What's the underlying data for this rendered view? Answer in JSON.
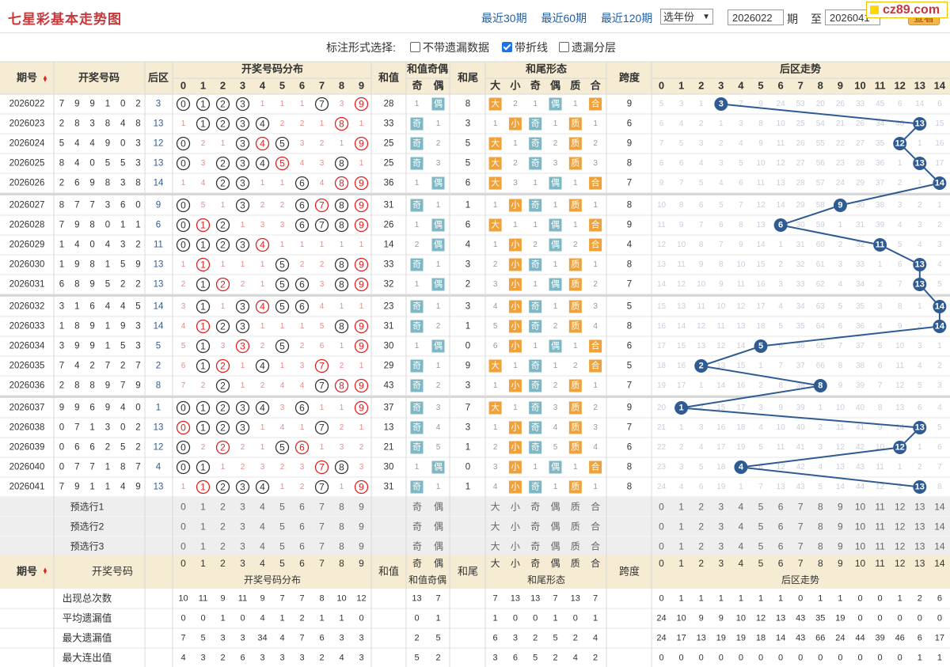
{
  "header": {
    "title": "七星彩基本走势图",
    "links": [
      "最近30期",
      "最近60期",
      "最近120期"
    ],
    "year_select": "选年份",
    "from_period": "2026022",
    "label_period": "期",
    "label_to": "至",
    "to_period": "2026041",
    "query_button": "查看",
    "logo_text": "cz89.com"
  },
  "options": {
    "title": "标注形式选择:",
    "items": [
      {
        "label": "不带遗漏数据",
        "checked": false
      },
      {
        "label": "带折线",
        "checked": true
      },
      {
        "label": "遗漏分层",
        "checked": false
      }
    ]
  },
  "table_headers": {
    "issue": "期号",
    "draw": "开奖号码",
    "back": "后区",
    "dist": "开奖号码分布",
    "sum": "和值",
    "sum_oe": "和值奇偶",
    "odd": "奇",
    "even": "偶",
    "tail": "和尾",
    "tail_form": "和尾形态",
    "forms": [
      "大",
      "小",
      "奇",
      "偶",
      "质",
      "合"
    ],
    "span": "跨度",
    "back_trend": "后区走势"
  },
  "rows": [
    {
      "issue": "2026022",
      "draw": [
        "7",
        "9",
        "9",
        "1",
        "0",
        "2"
      ],
      "back": 3,
      "sum": 28,
      "tail": 8,
      "span": 9,
      "dist": [
        "0",
        "1",
        "2",
        "3",
        "1",
        "1",
        "1",
        "7",
        "3",
        "9"
      ],
      "oe": [
        "1",
        "偶"
      ],
      "tf": [
        "大",
        "2",
        "1",
        "偶",
        "1",
        "合"
      ],
      "trend": [
        "5",
        "3",
        "1",
        "3",
        "7",
        "9",
        "24",
        "53",
        "20",
        "26",
        "33",
        "45",
        "6",
        "14",
        "6"
      ]
    },
    {
      "issue": "2026023",
      "draw": [
        "2",
        "8",
        "3",
        "8",
        "4",
        "8"
      ],
      "back": 13,
      "sum": 33,
      "tail": 3,
      "span": 6,
      "dist": [
        "1",
        "1",
        "2",
        "3",
        "4",
        "2",
        "2",
        "1",
        "8",
        "1"
      ],
      "oe": [
        "奇",
        "1"
      ],
      "tf": [
        "1",
        "小",
        "奇",
        "1",
        "质",
        "1"
      ],
      "trend": [
        "6",
        "4",
        "2",
        "1",
        "3",
        "8",
        "10",
        "25",
        "54",
        "21",
        "26",
        "34",
        "46",
        "13",
        "15"
      ]
    },
    {
      "issue": "2026024",
      "draw": [
        "5",
        "4",
        "4",
        "9",
        "0",
        "3"
      ],
      "back": 12,
      "sum": 25,
      "tail": 5,
      "span": 9,
      "dist": [
        "0",
        "2",
        "1",
        "3",
        "4",
        "5",
        "3",
        "2",
        "1",
        "9"
      ],
      "oe": [
        "奇",
        "2"
      ],
      "tf": [
        "大",
        "1",
        "奇",
        "2",
        "质",
        "2"
      ],
      "trend": [
        "7",
        "5",
        "3",
        "2",
        "4",
        "9",
        "11",
        "26",
        "55",
        "22",
        "27",
        "35",
        "12",
        "1",
        "16"
      ]
    },
    {
      "issue": "2026025",
      "draw": [
        "8",
        "4",
        "0",
        "5",
        "5",
        "3"
      ],
      "back": 13,
      "sum": 25,
      "tail": 5,
      "span": 8,
      "dist": [
        "0",
        "3",
        "2",
        "3",
        "4",
        "5",
        "4",
        "3",
        "8",
        "1"
      ],
      "oe": [
        "奇",
        "3"
      ],
      "tf": [
        "大",
        "2",
        "奇",
        "3",
        "质",
        "3"
      ],
      "trend": [
        "8",
        "6",
        "4",
        "3",
        "5",
        "10",
        "12",
        "27",
        "56",
        "23",
        "28",
        "36",
        "1",
        "13",
        "17"
      ]
    },
    {
      "issue": "2026026",
      "draw": [
        "2",
        "6",
        "9",
        "8",
        "3",
        "8"
      ],
      "back": 14,
      "sum": 36,
      "tail": 6,
      "span": 7,
      "dist": [
        "1",
        "4",
        "2",
        "3",
        "1",
        "1",
        "6",
        "4",
        "8",
        "9"
      ],
      "oe": [
        "1",
        "偶"
      ],
      "tf": [
        "大",
        "3",
        "1",
        "偶",
        "1",
        "合"
      ],
      "trend": [
        "9",
        "7",
        "5",
        "4",
        "6",
        "11",
        "13",
        "28",
        "57",
        "24",
        "29",
        "37",
        "2",
        "1",
        "14"
      ]
    },
    {
      "issue": "2026027",
      "draw": [
        "8",
        "7",
        "7",
        "3",
        "6",
        "0"
      ],
      "back": 9,
      "sum": 31,
      "tail": 1,
      "span": 8,
      "dist": [
        "0",
        "5",
        "1",
        "3",
        "2",
        "2",
        "6",
        "7",
        "8",
        "9"
      ],
      "oe": [
        "奇",
        "1"
      ],
      "tf": [
        "1",
        "小",
        "奇",
        "1",
        "质",
        "1"
      ],
      "trend": [
        "10",
        "8",
        "6",
        "5",
        "7",
        "12",
        "14",
        "29",
        "58",
        "9",
        "30",
        "38",
        "3",
        "2",
        "1"
      ]
    },
    {
      "issue": "2026028",
      "draw": [
        "7",
        "9",
        "8",
        "0",
        "1",
        "1"
      ],
      "back": 6,
      "sum": 26,
      "tail": 6,
      "span": 9,
      "dist": [
        "0",
        "1",
        "2",
        "1",
        "3",
        "3",
        "6",
        "7",
        "8",
        "9"
      ],
      "oe": [
        "1",
        "偶"
      ],
      "tf": [
        "大",
        "1",
        "1",
        "偶",
        "1",
        "合"
      ],
      "trend": [
        "11",
        "9",
        "7",
        "6",
        "8",
        "13",
        "6",
        "30",
        "59",
        "1",
        "31",
        "39",
        "4",
        "3",
        "2"
      ]
    },
    {
      "issue": "2026029",
      "draw": [
        "1",
        "4",
        "0",
        "4",
        "3",
        "2"
      ],
      "back": 11,
      "sum": 14,
      "tail": 4,
      "span": 4,
      "dist": [
        "0",
        "1",
        "2",
        "3",
        "4",
        "1",
        "1",
        "1",
        "1",
        "1"
      ],
      "oe": [
        "2",
        "偶"
      ],
      "tf": [
        "1",
        "小",
        "2",
        "偶",
        "2",
        "合"
      ],
      "trend": [
        "12",
        "10",
        "8",
        "7",
        "9",
        "14",
        "1",
        "31",
        "60",
        "2",
        "32",
        "11",
        "5",
        "4",
        "3"
      ]
    },
    {
      "issue": "2026030",
      "draw": [
        "1",
        "9",
        "8",
        "1",
        "5",
        "9"
      ],
      "back": 13,
      "sum": 33,
      "tail": 3,
      "span": 8,
      "dist": [
        "1",
        "1",
        "1",
        "1",
        "1",
        "5",
        "2",
        "2",
        "8",
        "9"
      ],
      "oe": [
        "奇",
        "1"
      ],
      "tf": [
        "2",
        "小",
        "奇",
        "1",
        "质",
        "1"
      ],
      "trend": [
        "13",
        "11",
        "9",
        "8",
        "10",
        "15",
        "2",
        "32",
        "61",
        "3",
        "33",
        "1",
        "6",
        "13",
        "4"
      ]
    },
    {
      "issue": "2026031",
      "draw": [
        "6",
        "8",
        "9",
        "5",
        "2",
        "2"
      ],
      "back": 13,
      "sum": 32,
      "tail": 2,
      "span": 7,
      "dist": [
        "2",
        "1",
        "2",
        "2",
        "1",
        "5",
        "6",
        "3",
        "8",
        "9"
      ],
      "oe": [
        "1",
        "偶"
      ],
      "tf": [
        "3",
        "小",
        "1",
        "偶",
        "质",
        "2"
      ],
      "trend": [
        "14",
        "12",
        "10",
        "9",
        "11",
        "16",
        "3",
        "33",
        "62",
        "4",
        "34",
        "2",
        "7",
        "13",
        "5"
      ]
    },
    {
      "issue": "2026032",
      "draw": [
        "3",
        "1",
        "6",
        "4",
        "4",
        "5"
      ],
      "back": 14,
      "sum": 23,
      "tail": 3,
      "span": 5,
      "dist": [
        "3",
        "1",
        "1",
        "3",
        "4",
        "5",
        "6",
        "4",
        "1",
        "1"
      ],
      "oe": [
        "奇",
        "1"
      ],
      "tf": [
        "4",
        "小",
        "奇",
        "1",
        "质",
        "3"
      ],
      "trend": [
        "15",
        "13",
        "11",
        "10",
        "12",
        "17",
        "4",
        "34",
        "63",
        "5",
        "35",
        "3",
        "8",
        "1",
        "14"
      ]
    },
    {
      "issue": "2026033",
      "draw": [
        "1",
        "8",
        "9",
        "1",
        "9",
        "3"
      ],
      "back": 14,
      "sum": 31,
      "tail": 1,
      "span": 8,
      "dist": [
        "4",
        "1",
        "2",
        "3",
        "1",
        "1",
        "1",
        "5",
        "8",
        "9"
      ],
      "oe": [
        "奇",
        "2"
      ],
      "tf": [
        "5",
        "小",
        "奇",
        "2",
        "质",
        "4"
      ],
      "trend": [
        "16",
        "14",
        "12",
        "11",
        "13",
        "18",
        "5",
        "35",
        "64",
        "6",
        "36",
        "4",
        "9",
        "2",
        "14"
      ]
    },
    {
      "issue": "2026034",
      "draw": [
        "3",
        "9",
        "9",
        "1",
        "5",
        "3"
      ],
      "back": 5,
      "sum": 30,
      "tail": 0,
      "span": 6,
      "dist": [
        "5",
        "1",
        "3",
        "3",
        "2",
        "5",
        "2",
        "6",
        "1",
        "9"
      ],
      "oe": [
        "1",
        "偶"
      ],
      "tf": [
        "6",
        "小",
        "1",
        "偶",
        "1",
        "合"
      ],
      "trend": [
        "17",
        "15",
        "13",
        "12",
        "14",
        "5",
        "6",
        "36",
        "65",
        "7",
        "37",
        "5",
        "10",
        "3",
        "1"
      ]
    },
    {
      "issue": "2026035",
      "draw": [
        "7",
        "4",
        "2",
        "7",
        "2",
        "7"
      ],
      "back": 2,
      "sum": 29,
      "tail": 9,
      "span": 5,
      "dist": [
        "6",
        "1",
        "2",
        "1",
        "4",
        "1",
        "3",
        "7",
        "2",
        "1"
      ],
      "oe": [
        "奇",
        "1"
      ],
      "tf": [
        "大",
        "1",
        "奇",
        "1",
        "2",
        "合"
      ],
      "trend": [
        "18",
        "16",
        "2",
        "13",
        "15",
        "1",
        "7",
        "37",
        "66",
        "8",
        "38",
        "6",
        "11",
        "4",
        "2"
      ]
    },
    {
      "issue": "2026036",
      "draw": [
        "2",
        "8",
        "8",
        "9",
        "7",
        "9"
      ],
      "back": 8,
      "sum": 43,
      "tail": 3,
      "span": 7,
      "dist": [
        "7",
        "2",
        "2",
        "1",
        "2",
        "4",
        "4",
        "7",
        "8",
        "9"
      ],
      "oe": [
        "奇",
        "2"
      ],
      "tf": [
        "1",
        "小",
        "奇",
        "2",
        "质",
        "1"
      ],
      "trend": [
        "19",
        "17",
        "1",
        "14",
        "16",
        "2",
        "8",
        "38",
        "8",
        "9",
        "39",
        "7",
        "12",
        "5",
        "3"
      ]
    },
    {
      "issue": "2026037",
      "draw": [
        "9",
        "9",
        "6",
        "9",
        "4",
        "0"
      ],
      "back": 1,
      "sum": 37,
      "tail": 7,
      "span": 9,
      "dist": [
        "0",
        "1",
        "2",
        "3",
        "4",
        "3",
        "6",
        "1",
        "1",
        "9"
      ],
      "oe": [
        "奇",
        "3"
      ],
      "tf": [
        "大",
        "1",
        "奇",
        "3",
        "质",
        "2"
      ],
      "trend": [
        "20",
        "1",
        "2",
        "15",
        "17",
        "3",
        "9",
        "39",
        "1",
        "10",
        "40",
        "8",
        "13",
        "6",
        "4"
      ]
    },
    {
      "issue": "2026038",
      "draw": [
        "0",
        "7",
        "1",
        "3",
        "0",
        "2"
      ],
      "back": 13,
      "sum": 13,
      "tail": 3,
      "span": 7,
      "dist": [
        "0",
        "1",
        "2",
        "3",
        "1",
        "4",
        "1",
        "7",
        "2",
        "1"
      ],
      "oe": [
        "奇",
        "4"
      ],
      "tf": [
        "1",
        "小",
        "奇",
        "4",
        "质",
        "3"
      ],
      "trend": [
        "21",
        "1",
        "3",
        "16",
        "18",
        "4",
        "10",
        "40",
        "2",
        "11",
        "41",
        "9",
        "14",
        "13",
        "5"
      ]
    },
    {
      "issue": "2026039",
      "draw": [
        "0",
        "6",
        "6",
        "2",
        "5",
        "2"
      ],
      "back": 12,
      "sum": 21,
      "tail": 1,
      "span": 6,
      "dist": [
        "0",
        "2",
        "2",
        "2",
        "1",
        "5",
        "6",
        "1",
        "3",
        "2"
      ],
      "oe": [
        "奇",
        "5"
      ],
      "tf": [
        "2",
        "小",
        "奇",
        "5",
        "质",
        "4"
      ],
      "trend": [
        "22",
        "2",
        "4",
        "17",
        "19",
        "5",
        "11",
        "41",
        "3",
        "12",
        "42",
        "10",
        "12",
        "1",
        "6"
      ]
    },
    {
      "issue": "2026040",
      "draw": [
        "0",
        "7",
        "7",
        "1",
        "8",
        "7"
      ],
      "back": 4,
      "sum": 30,
      "tail": 0,
      "span": 8,
      "dist": [
        "0",
        "1",
        "1",
        "2",
        "3",
        "2",
        "3",
        "7",
        "8",
        "3"
      ],
      "oe": [
        "1",
        "偶"
      ],
      "tf": [
        "3",
        "小",
        "1",
        "偶",
        "1",
        "合"
      ],
      "trend": [
        "23",
        "3",
        "5",
        "18",
        "4",
        "6",
        "12",
        "42",
        "4",
        "13",
        "43",
        "11",
        "1",
        "2",
        "7"
      ]
    },
    {
      "issue": "2026041",
      "draw": [
        "7",
        "9",
        "1",
        "1",
        "4",
        "9"
      ],
      "back": 13,
      "sum": 31,
      "tail": 1,
      "span": 8,
      "dist": [
        "1",
        "1",
        "2",
        "3",
        "4",
        "1",
        "2",
        "7",
        "1",
        "9"
      ],
      "oe": [
        "奇",
        "1"
      ],
      "tf": [
        "4",
        "小",
        "奇",
        "1",
        "质",
        "1"
      ],
      "trend": [
        "24",
        "4",
        "6",
        "19",
        "1",
        "7",
        "13",
        "43",
        "5",
        "14",
        "44",
        "12",
        "2",
        "13",
        "8"
      ]
    }
  ],
  "preselect": [
    "预选行1",
    "预选行2",
    "预选行3"
  ],
  "stats": [
    {
      "label": "出现总次数",
      "dist": [
        "10",
        "11",
        "9",
        "11",
        "9",
        "7",
        "7",
        "8",
        "10",
        "12"
      ],
      "oe": [
        "13",
        "7"
      ],
      "tf": [
        "7",
        "13",
        "13",
        "7",
        "13",
        "7"
      ],
      "trend": [
        "0",
        "1",
        "1",
        "1",
        "1",
        "1",
        "1",
        "0",
        "1",
        "1",
        "0",
        "0",
        "1",
        "2",
        "6",
        "3"
      ]
    },
    {
      "label": "平均遗漏值",
      "dist": [
        "0",
        "0",
        "1",
        "0",
        "4",
        "1",
        "2",
        "1",
        "1",
        "0"
      ],
      "oe": [
        "0",
        "1"
      ],
      "tf": [
        "1",
        "0",
        "0",
        "1",
        "0",
        "1"
      ],
      "trend": [
        "24",
        "10",
        "9",
        "9",
        "10",
        "12",
        "13",
        "43",
        "35",
        "19",
        "0",
        "0",
        "0",
        "0",
        "0"
      ]
    },
    {
      "label": "最大遗漏值",
      "dist": [
        "7",
        "5",
        "3",
        "3",
        "34",
        "4",
        "7",
        "6",
        "3",
        "3"
      ],
      "oe": [
        "2",
        "5"
      ],
      "tf": [
        "6",
        "3",
        "2",
        "5",
        "2",
        "4"
      ],
      "trend": [
        "24",
        "17",
        "13",
        "19",
        "19",
        "18",
        "14",
        "43",
        "66",
        "24",
        "44",
        "39",
        "46",
        "6",
        "17"
      ]
    },
    {
      "label": "最大连出值",
      "dist": [
        "4",
        "3",
        "2",
        "6",
        "3",
        "3",
        "3",
        "2",
        "4",
        "3"
      ],
      "oe": [
        "5",
        "2"
      ],
      "tf": [
        "3",
        "6",
        "5",
        "2",
        "4",
        "2"
      ],
      "trend": [
        "0",
        "0",
        "0",
        "0",
        "0",
        "0",
        "0",
        "0",
        "0",
        "0",
        "0",
        "0",
        "0",
        "1",
        "1"
      ]
    }
  ],
  "colors": {
    "red": "#e02020",
    "blue": "#2f5b93",
    "orange": "#f0a23a",
    "teal": "#7fb8c4",
    "header": "#f6ecd3"
  }
}
